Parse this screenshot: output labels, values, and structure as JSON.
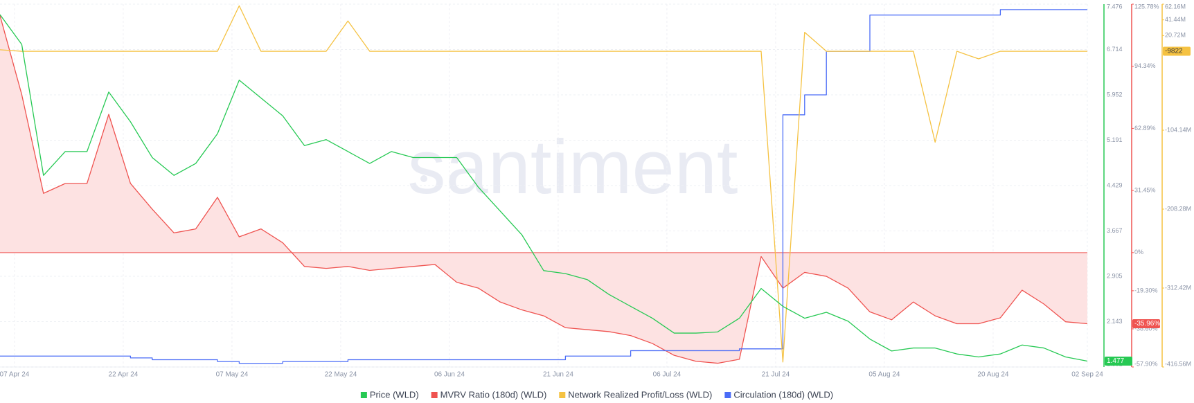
{
  "chart_data": {
    "type": "line",
    "watermark": "santiment",
    "grid": true,
    "x": [
      "2024-04-05",
      "2024-04-08",
      "2024-04-11",
      "2024-04-14",
      "2024-04-17",
      "2024-04-20",
      "2024-04-23",
      "2024-04-26",
      "2024-04-29",
      "2024-05-02",
      "2024-05-05",
      "2024-05-08",
      "2024-05-11",
      "2024-05-14",
      "2024-05-17",
      "2024-05-20",
      "2024-05-23",
      "2024-05-26",
      "2024-05-29",
      "2024-06-01",
      "2024-06-04",
      "2024-06-07",
      "2024-06-10",
      "2024-06-13",
      "2024-06-16",
      "2024-06-19",
      "2024-06-22",
      "2024-06-25",
      "2024-06-28",
      "2024-07-01",
      "2024-07-04",
      "2024-07-07",
      "2024-07-10",
      "2024-07-13",
      "2024-07-16",
      "2024-07-19",
      "2024-07-22",
      "2024-07-25",
      "2024-07-28",
      "2024-07-31",
      "2024-08-03",
      "2024-08-06",
      "2024-08-09",
      "2024-08-12",
      "2024-08-15",
      "2024-08-18",
      "2024-08-21",
      "2024-08-24",
      "2024-08-27",
      "2024-08-30",
      "2024-09-02"
    ],
    "xlim": [
      "2024-04-05",
      "2024-09-02"
    ],
    "xticks": [
      {
        "value": "2024-04-07",
        "label": "07 Apr 24"
      },
      {
        "value": "2024-04-22",
        "label": "22 Apr 24"
      },
      {
        "value": "2024-05-07",
        "label": "07 May 24"
      },
      {
        "value": "2024-05-22",
        "label": "22 May 24"
      },
      {
        "value": "2024-06-06",
        "label": "06 Jun 24"
      },
      {
        "value": "2024-06-21",
        "label": "21 Jun 24"
      },
      {
        "value": "2024-07-06",
        "label": "06 Jul 24"
      },
      {
        "value": "2024-07-21",
        "label": "21 Jul 24"
      },
      {
        "value": "2024-08-05",
        "label": "05 Aug 24"
      },
      {
        "value": "2024-08-20",
        "label": "20 Aug 24"
      },
      {
        "value": "2024-09-02",
        "label": "02 Sep 24"
      }
    ],
    "series": [
      {
        "name": "Price (WLD)",
        "color": "#26c953",
        "style": "line",
        "axis_grid": true,
        "current_label": "1.477",
        "ylim": [
          1.381,
          7.476
        ],
        "yticks": [
          1.381,
          2.143,
          2.905,
          3.667,
          4.429,
          5.191,
          5.952,
          6.714,
          7.476
        ],
        "values": [
          7.3,
          6.8,
          4.6,
          5.0,
          5.0,
          6.0,
          5.5,
          4.9,
          4.6,
          4.8,
          5.3,
          6.2,
          5.9,
          5.6,
          5.1,
          5.2,
          5.0,
          4.8,
          5.0,
          4.9,
          4.9,
          4.9,
          4.4,
          4.0,
          3.6,
          3.0,
          2.95,
          2.85,
          2.6,
          2.4,
          2.2,
          1.95,
          1.95,
          1.97,
          2.2,
          2.7,
          2.4,
          2.2,
          2.3,
          2.15,
          1.85,
          1.65,
          1.7,
          1.7,
          1.6,
          1.55,
          1.6,
          1.75,
          1.7,
          1.55,
          1.48
        ]
      },
      {
        "name": "MVRV Ratio (180d) (WLD)",
        "color": "#ef5350",
        "fill": "#fde2e2",
        "style": "area",
        "current_label": "-35.96%",
        "ylim": [
          -57.9,
          125.78
        ],
        "yticks": [
          {
            "value": -57.9,
            "label": "-57.90%"
          },
          {
            "value": -38.6,
            "label": "-38.60%"
          },
          {
            "value": -19.3,
            "label": "-19.30%"
          },
          {
            "value": 0,
            "label": "0%"
          },
          {
            "value": 31.45,
            "label": "31.45%"
          },
          {
            "value": 62.89,
            "label": "62.89%"
          },
          {
            "value": 94.34,
            "label": "94.34%"
          },
          {
            "value": 125.78,
            "label": "125.78%"
          }
        ],
        "values": [
          120,
          80,
          30,
          35,
          35,
          70,
          35,
          22,
          10,
          12,
          28,
          8,
          12,
          5,
          -7,
          -8,
          -7,
          -9,
          -8,
          -7,
          -6,
          -15,
          -18,
          -25,
          -29,
          -32,
          -38,
          -39,
          -40,
          -42,
          -46,
          -52,
          -55,
          -56,
          -54,
          -2,
          -18,
          -10,
          -12,
          -18,
          -30,
          -34,
          -25,
          -32,
          -36,
          -36,
          -33,
          -19,
          -26,
          -35,
          -36
        ]
      },
      {
        "name": "Network Realized Profit/Loss (WLD)",
        "color": "#f5c242",
        "style": "line",
        "current_label": "-9822",
        "ylim": [
          -416.56,
          62.16
        ],
        "yticks": [
          {
            "value": -416.56,
            "label": "-416.56M"
          },
          {
            "value": -312.42,
            "label": "-312.42M"
          },
          {
            "value": -208.28,
            "label": "-208.28M"
          },
          {
            "value": -104.14,
            "label": "-104.14M"
          },
          {
            "value": 20.72,
            "label": "20.72M"
          },
          {
            "value": 41.44,
            "label": "41.44M"
          },
          {
            "value": 62.16,
            "label": "62.16M"
          }
        ],
        "values": [
          2,
          0,
          0,
          0,
          0,
          0,
          0,
          0,
          0,
          0,
          0,
          60,
          0,
          0,
          0,
          0,
          40,
          0,
          0,
          0,
          0,
          0,
          0,
          0,
          0,
          0,
          0,
          0,
          0,
          0,
          0,
          0,
          0,
          0,
          0,
          0,
          -410,
          25,
          0,
          0,
          0,
          0,
          0,
          -120,
          0,
          -10,
          0,
          0,
          0,
          0,
          0
        ]
      },
      {
        "name": "Circulation (180d) (WLD)",
        "color": "#4a6cf7",
        "style": "step",
        "ylim": [
          0,
          100
        ],
        "values": [
          3,
          3,
          3,
          3,
          3,
          3,
          2.5,
          2,
          2,
          2,
          1.5,
          1,
          1,
          1.5,
          1.5,
          1.5,
          2,
          2,
          2,
          2,
          2,
          2,
          2,
          2,
          2,
          2,
          3,
          3,
          3,
          4.5,
          4.5,
          4.5,
          4.5,
          4.5,
          5,
          5,
          69.5,
          75,
          87,
          87,
          97,
          97,
          97,
          97,
          97,
          97,
          98.5,
          98.5,
          98.5,
          98.5,
          98.5
        ]
      }
    ]
  }
}
